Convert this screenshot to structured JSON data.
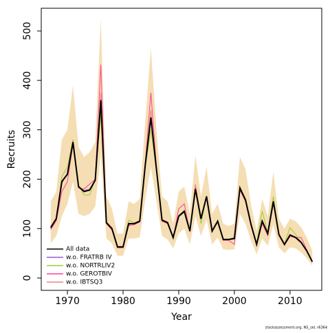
{
  "chart_data": {
    "type": "line",
    "x_label": "Year",
    "y_label": "Recruits",
    "annotation": "stockassessment.org, NS_sel, r6364",
    "x": [
      1967,
      1968,
      1969,
      1970,
      1971,
      1972,
      1973,
      1974,
      1975,
      1976,
      1977,
      1978,
      1979,
      1980,
      1981,
      1982,
      1983,
      1984,
      1985,
      1986,
      1987,
      1988,
      1989,
      1990,
      1991,
      1992,
      1993,
      1994,
      1995,
      1996,
      1997,
      1998,
      1999,
      2000,
      2001,
      2002,
      2003,
      2004,
      2005,
      2006,
      2007,
      2008,
      2009,
      2010,
      2011,
      2012,
      2013,
      2014
    ],
    "band": {
      "color": "#f5deb3",
      "upper": [
        155,
        175,
        280,
        300,
        390,
        265,
        245,
        255,
        275,
        525,
        165,
        140,
        90,
        90,
        155,
        150,
        160,
        320,
        465,
        300,
        165,
        155,
        110,
        175,
        185,
        130,
        248,
        165,
        225,
        130,
        150,
        110,
        105,
        110,
        245,
        220,
        148,
        95,
        160,
        125,
        215,
        120,
        100,
        120,
        115,
        103,
        82,
        55
      ],
      "lower": [
        70,
        85,
        125,
        150,
        195,
        130,
        125,
        130,
        145,
        250,
        80,
        70,
        45,
        45,
        80,
        80,
        82,
        160,
        225,
        155,
        85,
        78,
        60,
        90,
        100,
        68,
        125,
        85,
        118,
        68,
        82,
        58,
        57,
        58,
        130,
        110,
        75,
        48,
        80,
        65,
        108,
        62,
        50,
        62,
        60,
        52,
        40,
        25
      ]
    },
    "series": [
      {
        "name": "All data",
        "color": "#000000",
        "values": [
          102,
          120,
          195,
          210,
          275,
          185,
          175,
          178,
          198,
          360,
          112,
          100,
          63,
          63,
          110,
          110,
          115,
          230,
          325,
          220,
          117,
          112,
          82,
          125,
          135,
          95,
          180,
          120,
          165,
          95,
          115,
          78,
          78,
          80,
          182,
          158,
          108,
          68,
          115,
          90,
          155,
          88,
          68,
          87,
          82,
          72,
          55,
          33
        ]
      },
      {
        "name": "w.o. FRATRB IV",
        "color": "#9b59d0",
        "values": [
          100,
          118,
          192,
          212,
          272,
          183,
          177,
          180,
          196,
          352,
          110,
          98,
          62,
          62,
          108,
          111,
          114,
          228,
          320,
          218,
          116,
          110,
          80,
          124,
          133,
          94,
          178,
          119,
          163,
          94,
          113,
          77,
          77,
          79,
          180,
          156,
          106,
          67,
          113,
          89,
          152,
          87,
          67,
          86,
          81,
          71,
          54,
          32
        ]
      },
      {
        "name": "w.o. NORTRLIV2",
        "color": "#9acd32",
        "values": [
          104,
          122,
          205,
          225,
          280,
          188,
          168,
          168,
          200,
          330,
          114,
          102,
          64,
          64,
          117,
          112,
          116,
          225,
          300,
          215,
          119,
          114,
          83,
          127,
          137,
          96,
          176,
          110,
          167,
          96,
          117,
          79,
          79,
          82,
          185,
          160,
          110,
          70,
          135,
          92,
          165,
          90,
          69,
          102,
          88,
          73,
          56,
          34
        ]
      },
      {
        "name": "w.o. GEROTBIV",
        "color": "#ff3e96",
        "values": [
          98,
          116,
          175,
          195,
          270,
          182,
          180,
          190,
          200,
          432,
          110,
          97,
          61,
          61,
          106,
          108,
          113,
          235,
          375,
          225,
          115,
          110,
          80,
          140,
          150,
          93,
          185,
          122,
          166,
          93,
          113,
          76,
          76,
          68,
          178,
          155,
          105,
          66,
          110,
          86,
          150,
          86,
          66,
          84,
          82,
          82,
          57,
          32
        ]
      },
      {
        "name": "w.o. IBTSQ3",
        "color": "#f08080",
        "values": [
          103,
          121,
          197,
          211,
          277,
          186,
          176,
          179,
          199,
          375,
          113,
          101,
          63,
          63,
          111,
          110,
          116,
          232,
          340,
          222,
          118,
          113,
          82,
          126,
          136,
          96,
          190,
          121,
          166,
          96,
          116,
          78,
          78,
          80,
          183,
          159,
          109,
          69,
          116,
          91,
          156,
          89,
          69,
          88,
          83,
          73,
          56,
          34
        ]
      }
    ],
    "xlim": [
      1965.3,
      2015.7
    ],
    "ylim": [
      -25,
      546
    ],
    "xticks": [
      1970,
      1980,
      1990,
      2000,
      2010
    ],
    "yticks": [
      0,
      100,
      200,
      300,
      400,
      500
    ],
    "legend": "bottom-left"
  }
}
